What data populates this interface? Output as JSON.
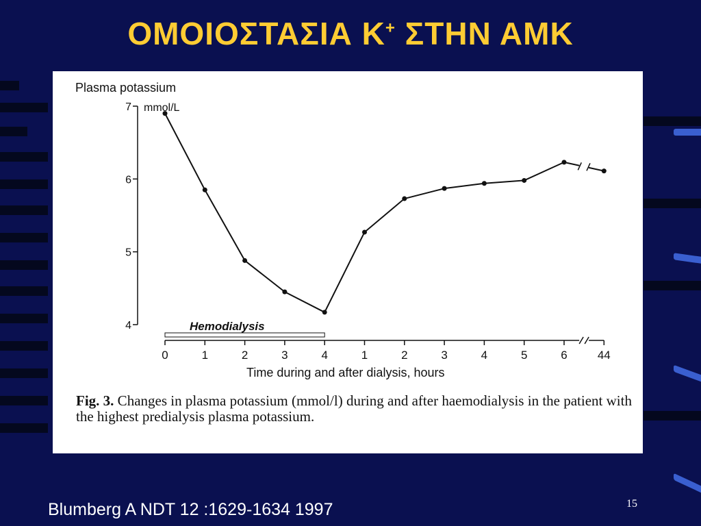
{
  "slide": {
    "title_main": "ΟΜΟΙΟΣΤΑΣΙΑ Κ",
    "title_sup": "+",
    "title_tail": " ΣΤΗΝ ΑΜΚ",
    "footer": "Blumberg A NDT 12 :1629-1634 1997",
    "page_number": "15"
  },
  "caption": {
    "fig_label": "Fig. 3.",
    "text": " Changes in plasma potassium (mmol/l) during and after haemodialysis in the patient with the highest predialysis plasma potassium."
  },
  "chart_data": {
    "type": "line",
    "title": "Plasma potassium",
    "unit_label": "mmol/L",
    "xlabel": "Time during and after dialysis, hours",
    "ylabel": "Plasma potassium",
    "ylim": [
      4,
      7
    ],
    "y_ticks": [
      "4",
      "5",
      "6",
      "7"
    ],
    "x_tick_labels": [
      "0",
      "1",
      "2",
      "3",
      "4",
      "1",
      "2",
      "3",
      "4",
      "5",
      "6",
      "44"
    ],
    "phase_label": "Hemodialysis",
    "phase_range": [
      "0",
      "4"
    ],
    "axis_break_between": [
      "6",
      "44"
    ],
    "series": [
      {
        "values": [
          6.9,
          5.85,
          4.88,
          4.45,
          4.17,
          5.27,
          5.73,
          5.87,
          5.94,
          5.98,
          6.23,
          6.11
        ]
      }
    ]
  }
}
